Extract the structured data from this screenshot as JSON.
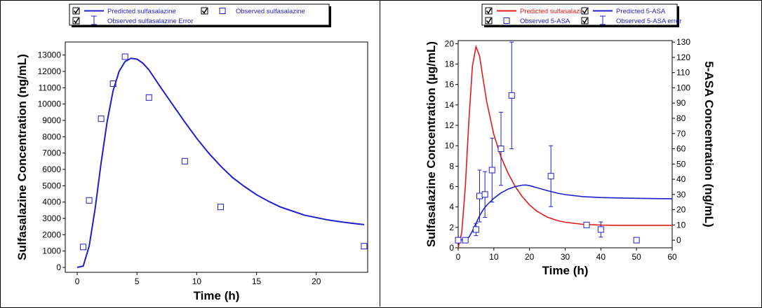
{
  "colors": {
    "blue": "#1f1fc8",
    "red": "#e01a1a",
    "legend_bg": "#ffffff"
  },
  "chart_data": [
    {
      "type": "line",
      "legend": [
        {
          "label": "Predicted sulfasalazine",
          "kind": "line",
          "color": "#1f1fc8",
          "checked": true
        },
        {
          "label": "Observed sulfasalazine",
          "kind": "square",
          "color": "#1f1fc8",
          "checked": true
        },
        {
          "label": "Observed sulfasalazine Error",
          "kind": "errorbar",
          "color": "#1f1fc8",
          "checked": true
        }
      ],
      "xlabel": "Time (h)",
      "ylabel": "Sulfasalazine Concentration (ng/mL)",
      "xlim": [
        -1,
        24.3
      ],
      "ylim": [
        -300,
        13800
      ],
      "xticks": [
        0,
        5,
        10,
        15,
        20
      ],
      "yticks": [
        0,
        1000,
        2000,
        3000,
        4000,
        5000,
        6000,
        7000,
        8000,
        9000,
        10000,
        11000,
        12000,
        13000
      ],
      "grid": false,
      "legend_position": "top",
      "series": [
        {
          "name": "Predicted sulfasalazine",
          "kind": "line",
          "x": [
            0,
            0.5,
            1,
            1.5,
            2,
            2.5,
            3,
            3.5,
            4,
            4.5,
            5,
            5.5,
            6,
            7,
            8,
            9,
            10,
            11,
            12,
            13,
            14,
            15,
            16,
            17,
            18,
            19,
            20,
            21,
            22,
            23,
            24
          ],
          "y": [
            0,
            80,
            1300,
            3600,
            6400,
            8900,
            10800,
            12000,
            12600,
            12800,
            12750,
            12500,
            12100,
            11000,
            9950,
            8900,
            7900,
            7000,
            6200,
            5500,
            4950,
            4450,
            4050,
            3700,
            3450,
            3200,
            3050,
            2900,
            2800,
            2700,
            2620
          ]
        },
        {
          "name": "Observed sulfasalazine",
          "kind": "scatter",
          "x": [
            0.5,
            1,
            2,
            3,
            4,
            6,
            9,
            12,
            24
          ],
          "y": [
            1250,
            4100,
            9100,
            11250,
            12900,
            10400,
            6500,
            3700,
            1300
          ]
        }
      ]
    },
    {
      "type": "line",
      "legend": [
        {
          "label": "Predicted sulfasalazine",
          "kind": "line",
          "color": "#e01a1a",
          "checked": true
        },
        {
          "label": "Predicted 5-ASA",
          "kind": "line",
          "color": "#1f1fc8",
          "checked": true
        },
        {
          "label": "Observed 5-ASA",
          "kind": "square",
          "color": "#1f1fc8",
          "checked": true
        },
        {
          "label": "Observed 5-ASA error",
          "kind": "errorbar",
          "color": "#1f1fc8",
          "checked": true
        }
      ],
      "xlabel": "Time (h)",
      "ylabel": "Sulfasalazine Concentration (µg/mL)",
      "y2label": "5-ASA Concentration (ng/mL)",
      "xlim": [
        0,
        60
      ],
      "ylim": [
        0,
        20.3
      ],
      "y2lim": [
        -5,
        131
      ],
      "xticks": [
        0,
        10,
        20,
        30,
        40,
        50,
        60
      ],
      "yticks": [
        0,
        2,
        4,
        6,
        8,
        10,
        12,
        14,
        16,
        18,
        20
      ],
      "y2ticks": [
        0,
        10,
        20,
        30,
        40,
        50,
        60,
        70,
        80,
        90,
        100,
        110,
        120,
        130
      ],
      "grid": false,
      "legend_position": "top",
      "series": [
        {
          "name": "Predicted sulfasalazine",
          "axis": "left",
          "kind": "line",
          "x": [
            0,
            1,
            2,
            3,
            4,
            5,
            6,
            7,
            8,
            10,
            12,
            14,
            16,
            18,
            20,
            22,
            25,
            28,
            30,
            35,
            40,
            45,
            50,
            55,
            60
          ],
          "y": [
            0,
            1.5,
            6,
            12.5,
            17.8,
            19.7,
            18.8,
            16.5,
            14.3,
            11.1,
            8.9,
            7.3,
            6.0,
            5.0,
            4.2,
            3.6,
            3.0,
            2.65,
            2.5,
            2.3,
            2.22,
            2.2,
            2.2,
            2.2,
            2.2
          ]
        },
        {
          "name": "Predicted 5-ASA",
          "axis": "right",
          "kind": "line",
          "x": [
            0,
            2,
            3,
            4,
            5,
            6,
            7,
            8,
            10,
            12,
            14,
            16,
            18,
            19,
            20,
            22,
            25,
            28,
            30,
            35,
            40,
            45,
            50,
            55,
            60
          ],
          "y": [
            0,
            0.5,
            2,
            6,
            11,
            16,
            20,
            23,
            27.5,
            31,
            33.5,
            35.2,
            36.1,
            36.2,
            35.8,
            34.5,
            32.5,
            30.8,
            29.9,
            28.6,
            28.0,
            27.7,
            27.5,
            27.3,
            27.2
          ]
        },
        {
          "name": "Observed 5-ASA",
          "axis": "right",
          "kind": "scatter",
          "x": [
            0,
            2,
            5,
            6,
            7.5,
            9.5,
            12,
            15,
            26,
            36,
            40,
            50
          ],
          "y": [
            0,
            0,
            7,
            29,
            30,
            46,
            60,
            95,
            42,
            10,
            7,
            0
          ],
          "err": [
            0,
            0,
            4,
            17,
            15,
            21,
            24,
            35,
            20,
            0,
            5,
            0
          ]
        }
      ]
    }
  ]
}
